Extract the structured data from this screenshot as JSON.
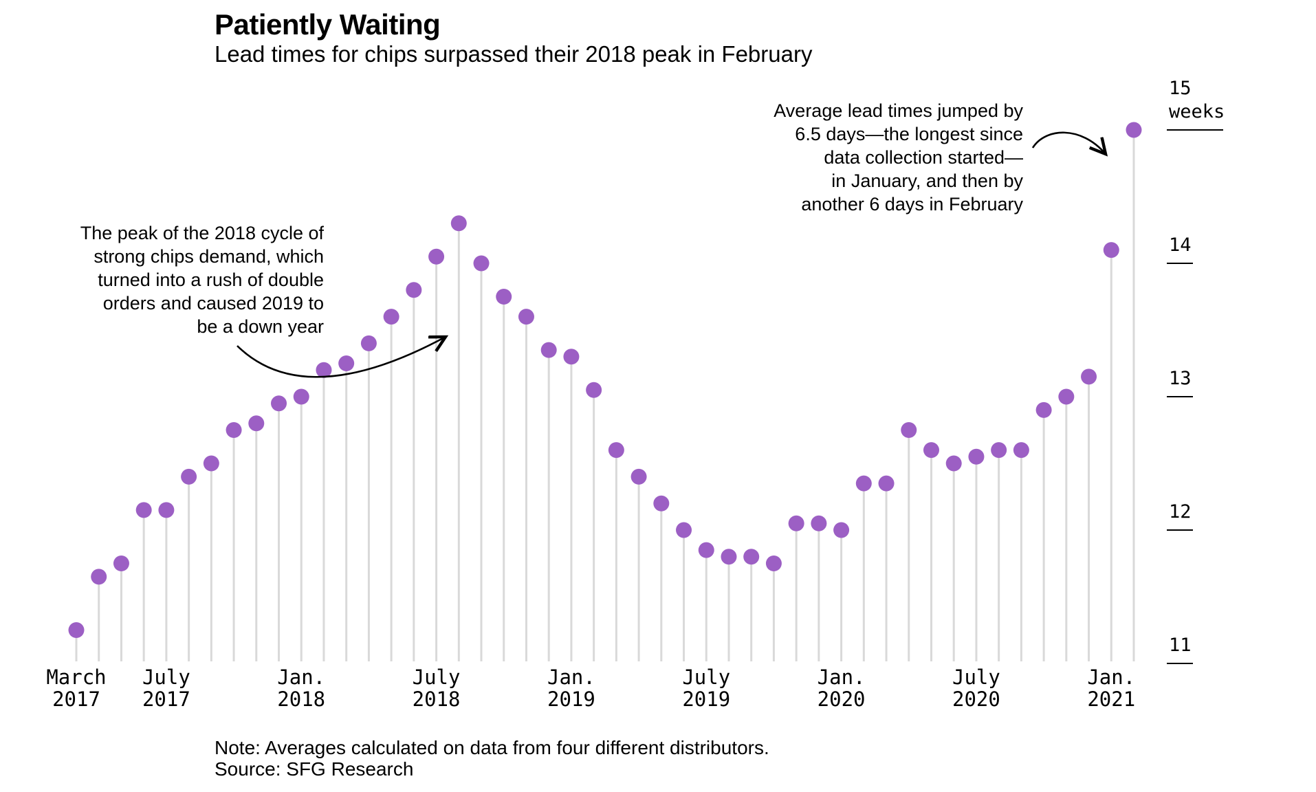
{
  "header": {
    "title": "Patiently Waiting",
    "subtitle": "Lead times for chips surpassed their 2018 peak in February"
  },
  "annotations": {
    "peak_2018": {
      "text": "The peak of the 2018 cycle of\nstrong chips demand, which\nturned into a rush of double\norders and caused 2019 to\nbe a down year"
    },
    "feb_2021": {
      "text": "Average lead times jumped by\n6.5 days—the longest since\ndata collection started—\nin January, and then by\nanother 6 days in February"
    }
  },
  "footer": {
    "note": "Note: Averages calculated on data from four different distributors.",
    "source": "Source: SFG Research"
  },
  "chart_data": {
    "type": "scatter",
    "mark": "lollipop",
    "title": "Patiently Waiting",
    "subtitle": "Lead times for chips surpassed their 2018 peak in February",
    "unit": "weeks",
    "grid": "off",
    "legend": "none",
    "ylim": [
      11,
      15
    ],
    "baseline_value": 11,
    "categories": [
      "Mar 2017",
      "Apr 2017",
      "May 2017",
      "Jun 2017",
      "Jul 2017",
      "Aug 2017",
      "Sep 2017",
      "Oct 2017",
      "Nov 2017",
      "Dec 2017",
      "Jan 2018",
      "Feb 2018",
      "Mar 2018",
      "Apr 2018",
      "May 2018",
      "Jun 2018",
      "Jul 2018",
      "Aug 2018",
      "Sep 2018",
      "Oct 2018",
      "Nov 2018",
      "Dec 2018",
      "Jan 2019",
      "Feb 2019",
      "Mar 2019",
      "Apr 2019",
      "May 2019",
      "Jun 2019",
      "Jul 2019",
      "Aug 2019",
      "Sep 2019",
      "Oct 2019",
      "Nov 2019",
      "Dec 2019",
      "Jan 2020",
      "Feb 2020",
      "Mar 2020",
      "Apr 2020",
      "May 2020",
      "Jun 2020",
      "Jul 2020",
      "Aug 2020",
      "Sep 2020",
      "Oct 2020",
      "Nov 2020",
      "Dec 2020",
      "Jan 2021",
      "Feb 2021"
    ],
    "values": [
      11.25,
      11.65,
      11.75,
      12.15,
      12.15,
      12.4,
      12.5,
      12.75,
      12.8,
      12.95,
      13.0,
      13.2,
      13.25,
      13.4,
      13.6,
      13.8,
      14.05,
      14.3,
      14.0,
      13.75,
      13.6,
      13.35,
      13.3,
      13.05,
      12.6,
      12.4,
      12.2,
      12.0,
      11.85,
      11.8,
      11.8,
      11.75,
      12.05,
      12.05,
      12.0,
      12.35,
      12.35,
      12.75,
      12.6,
      12.5,
      12.55,
      12.6,
      12.6,
      12.9,
      13.0,
      13.15,
      14.1,
      15.0
    ],
    "yticks": [
      {
        "value": 15,
        "label": "15",
        "unit": "weeks"
      },
      {
        "value": 14,
        "label": "14"
      },
      {
        "value": 13,
        "label": "13"
      },
      {
        "value": 12,
        "label": "12"
      },
      {
        "value": 11,
        "label": "11"
      }
    ],
    "xticks": [
      {
        "index": 0,
        "line1": "March",
        "line2": "2017"
      },
      {
        "index": 4,
        "line1": "July",
        "line2": "2017"
      },
      {
        "index": 10,
        "line1": "Jan.",
        "line2": "2018"
      },
      {
        "index": 16,
        "line1": "July",
        "line2": "2018"
      },
      {
        "index": 22,
        "line1": "Jan.",
        "line2": "2019"
      },
      {
        "index": 28,
        "line1": "July",
        "line2": "2019"
      },
      {
        "index": 34,
        "line1": "Jan.",
        "line2": "2020"
      },
      {
        "index": 40,
        "line1": "July",
        "line2": "2020"
      },
      {
        "index": 46,
        "line1": "Jan.",
        "line2": "2021"
      }
    ],
    "colors": {
      "point": "#9c5fc4",
      "stem": "#d9d9d9",
      "text": "#000000"
    }
  }
}
